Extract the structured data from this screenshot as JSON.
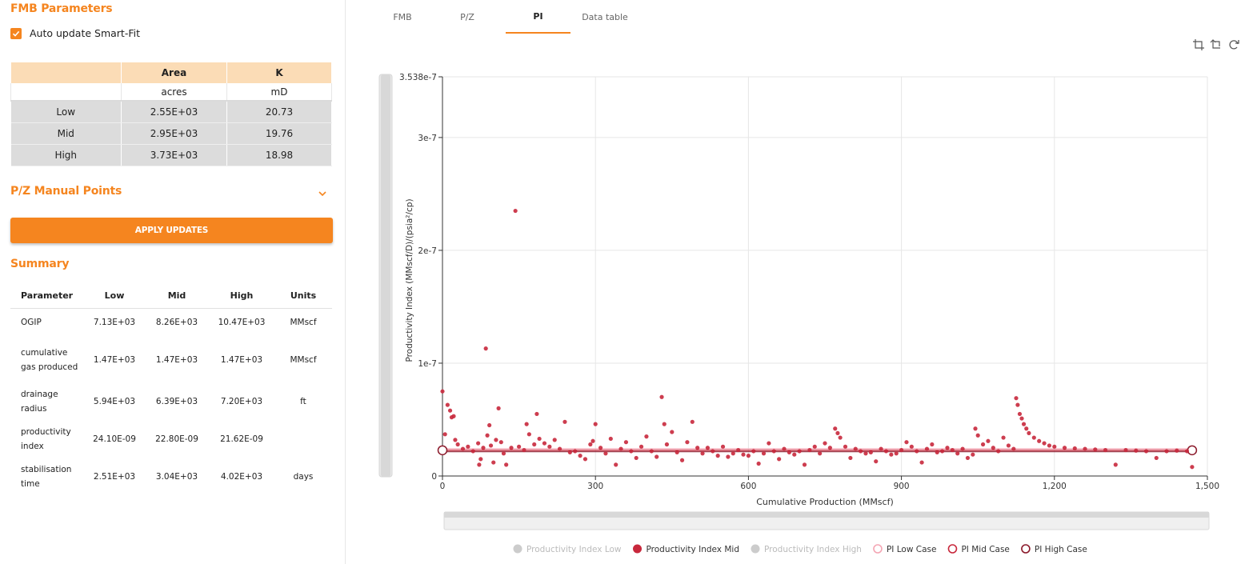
{
  "fmb": {
    "title": "FMB Parameters",
    "auto_update_label": "Auto update Smart-Fit",
    "table": {
      "headers": [
        "",
        "Area",
        "K"
      ],
      "units": [
        "",
        "acres",
        "mD"
      ],
      "rows": [
        {
          "case": "Low",
          "area": "2.55E+03",
          "k": "20.73"
        },
        {
          "case": "Mid",
          "area": "2.95E+03",
          "k": "19.76"
        },
        {
          "case": "High",
          "area": "3.73E+03",
          "k": "18.98"
        }
      ]
    }
  },
  "pz_manual": {
    "title": "P/Z Manual Points"
  },
  "apply_button": {
    "label": "APPLY UPDATES"
  },
  "summary": {
    "title": "Summary",
    "headers": [
      "Parameter",
      "Low",
      "Mid",
      "High",
      "Units"
    ],
    "rows": [
      {
        "param": "OGIP",
        "low": "7.13E+03",
        "mid": "8.26E+03",
        "high": "10.47E+03",
        "units": "MMscf"
      },
      {
        "param": "cumulative gas produced",
        "low": "1.47E+03",
        "mid": "1.47E+03",
        "high": "1.47E+03",
        "units": "MMscf"
      },
      {
        "param": "drainage radius",
        "low": "5.94E+03",
        "mid": "6.39E+03",
        "high": "7.20E+03",
        "units": "ft"
      },
      {
        "param": "productivity index",
        "low": "24.10E-09",
        "mid": "22.80E-09",
        "high": "21.62E-09",
        "units": ""
      },
      {
        "param": "stabilisation time",
        "low": "2.51E+03",
        "mid": "3.04E+03",
        "high": "4.02E+03",
        "units": "days"
      }
    ]
  },
  "tabs": [
    {
      "label": "FMB",
      "active": false
    },
    {
      "label": "P/Z",
      "active": false
    },
    {
      "label": "PI",
      "active": true
    },
    {
      "label": "Data table",
      "active": false
    }
  ],
  "colors": {
    "accent": "#f5851f",
    "header_fill": "#fbdcb6",
    "mid_series": "#c8283c",
    "high_case": "#8b1a2b",
    "low_case": "#f4a6b4",
    "inactive_legend": "#cccccc"
  },
  "chart_data": {
    "type": "scatter",
    "xlabel": "Cumulative Production (MMscf)",
    "ylabel": "Productivity Index (MMscf/D)/(psia²/cp)",
    "xlim": [
      0,
      1500
    ],
    "ylim": [
      0,
      3.538e-07
    ],
    "x_ticks": [
      "0",
      "300",
      "600",
      "900",
      "1,200",
      "1,500"
    ],
    "y_ticks": [
      "0",
      "1e-7",
      "2e-7",
      "3e-7",
      "3.538e-7"
    ],
    "y_tick_values": [
      0,
      1e-07,
      2e-07,
      3e-07,
      3.538e-07
    ],
    "x_tick_values": [
      0,
      300,
      600,
      900,
      1200,
      1500
    ],
    "grid": true,
    "legend": [
      {
        "name": "Productivity Index Low",
        "marker": "dot",
        "active": false
      },
      {
        "name": "Productivity Index Mid",
        "marker": "dot",
        "active": true
      },
      {
        "name": "Productivity Index High",
        "marker": "dot",
        "active": false
      },
      {
        "name": "PI Low Case",
        "marker": "ring",
        "active": true
      },
      {
        "name": "PI Mid Case",
        "marker": "ring",
        "active": true
      },
      {
        "name": "PI High Case",
        "marker": "ring",
        "active": true
      }
    ],
    "case_lines": [
      {
        "name": "PI Low Case",
        "value": 2.41e-08,
        "x_range": [
          0,
          1470
        ]
      },
      {
        "name": "PI Mid Case",
        "value": 2.28e-08,
        "x_range": [
          0,
          1470
        ]
      },
      {
        "name": "PI High Case",
        "value": 2.162e-08,
        "x_range": [
          0,
          1470
        ]
      }
    ],
    "series_mid_points": [
      [
        0,
        7.5e-08
      ],
      [
        5,
        3.7e-08
      ],
      [
        10,
        6.3e-08
      ],
      [
        15,
        5.8e-08
      ],
      [
        18,
        5.2e-08
      ],
      [
        22,
        5.3e-08
      ],
      [
        25,
        3.2e-08
      ],
      [
        30,
        2.8e-08
      ],
      [
        40,
        2.4e-08
      ],
      [
        50,
        2.6e-08
      ],
      [
        60,
        2.2e-08
      ],
      [
        70,
        2.9e-08
      ],
      [
        72,
        1e-08
      ],
      [
        75,
        1.5e-08
      ],
      [
        80,
        2.5e-08
      ],
      [
        85,
        1.13e-07
      ],
      [
        88,
        3.6e-08
      ],
      [
        92,
        4.5e-08
      ],
      [
        95,
        2.7e-08
      ],
      [
        100,
        1.2e-08
      ],
      [
        105,
        3.2e-08
      ],
      [
        110,
        6e-08
      ],
      [
        115,
        3e-08
      ],
      [
        120,
        2e-08
      ],
      [
        125,
        1e-08
      ],
      [
        135,
        2.5e-08
      ],
      [
        143,
        2.35e-07
      ],
      [
        150,
        2.6e-08
      ],
      [
        160,
        2.3e-08
      ],
      [
        165,
        4.6e-08
      ],
      [
        170,
        3.7e-08
      ],
      [
        180,
        2.8e-08
      ],
      [
        185,
        5.5e-08
      ],
      [
        190,
        3.3e-08
      ],
      [
        200,
        2.9e-08
      ],
      [
        210,
        2.6e-08
      ],
      [
        220,
        3.2e-08
      ],
      [
        230,
        2.4e-08
      ],
      [
        240,
        4.8e-08
      ],
      [
        250,
        2.1e-08
      ],
      [
        260,
        2.2e-08
      ],
      [
        270,
        1.8e-08
      ],
      [
        280,
        1.5e-08
      ],
      [
        290,
        2.8e-08
      ],
      [
        295,
        3.1e-08
      ],
      [
        300,
        4.6e-08
      ],
      [
        310,
        2.5e-08
      ],
      [
        320,
        2e-08
      ],
      [
        330,
        3.3e-08
      ],
      [
        340,
        1e-08
      ],
      [
        350,
        2.4e-08
      ],
      [
        360,
        3e-08
      ],
      [
        370,
        2.2e-08
      ],
      [
        380,
        1.6e-08
      ],
      [
        390,
        2.6e-08
      ],
      [
        400,
        3.5e-08
      ],
      [
        410,
        2.2e-08
      ],
      [
        420,
        1.7e-08
      ],
      [
        430,
        7e-08
      ],
      [
        435,
        4.6e-08
      ],
      [
        440,
        2.8e-08
      ],
      [
        450,
        3.9e-08
      ],
      [
        460,
        2.1e-08
      ],
      [
        470,
        1.4e-08
      ],
      [
        480,
        3e-08
      ],
      [
        490,
        4.8e-08
      ],
      [
        500,
        2.5e-08
      ],
      [
        510,
        2e-08
      ],
      [
        520,
        2.5e-08
      ],
      [
        530,
        2.2e-08
      ],
      [
        540,
        1.8e-08
      ],
      [
        550,
        2.6e-08
      ],
      [
        560,
        1.7e-08
      ],
      [
        570,
        2e-08
      ],
      [
        580,
        2.3e-08
      ],
      [
        590,
        1.9e-08
      ],
      [
        600,
        1.8e-08
      ],
      [
        610,
        2.2e-08
      ],
      [
        620,
        1.1e-08
      ],
      [
        630,
        2e-08
      ],
      [
        640,
        2.9e-08
      ],
      [
        650,
        2.2e-08
      ],
      [
        660,
        1.5e-08
      ],
      [
        670,
        2.4e-08
      ],
      [
        680,
        2.1e-08
      ],
      [
        690,
        1.9e-08
      ],
      [
        700,
        2.2e-08
      ],
      [
        710,
        1e-08
      ],
      [
        720,
        2.3e-08
      ],
      [
        730,
        2.6e-08
      ],
      [
        740,
        2e-08
      ],
      [
        750,
        2.9e-08
      ],
      [
        760,
        2.5e-08
      ],
      [
        770,
        4.2e-08
      ],
      [
        775,
        3.8e-08
      ],
      [
        780,
        3.4e-08
      ],
      [
        790,
        2.6e-08
      ],
      [
        800,
        1.6e-08
      ],
      [
        810,
        2.4e-08
      ],
      [
        820,
        2.2e-08
      ],
      [
        830,
        2e-08
      ],
      [
        840,
        2.1e-08
      ],
      [
        850,
        1.3e-08
      ],
      [
        860,
        2.4e-08
      ],
      [
        870,
        2.2e-08
      ],
      [
        880,
        1.9e-08
      ],
      [
        890,
        2e-08
      ],
      [
        900,
        2.3e-08
      ],
      [
        910,
        3e-08
      ],
      [
        920,
        2.6e-08
      ],
      [
        930,
        2.2e-08
      ],
      [
        940,
        1.2e-08
      ],
      [
        950,
        2.4e-08
      ],
      [
        960,
        2.8e-08
      ],
      [
        970,
        2.1e-08
      ],
      [
        980,
        2.2e-08
      ],
      [
        990,
        2.5e-08
      ],
      [
        1000,
        2.3e-08
      ],
      [
        1010,
        2e-08
      ],
      [
        1020,
        2.4e-08
      ],
      [
        1030,
        1.6e-08
      ],
      [
        1040,
        1.9e-08
      ],
      [
        1045,
        4.2e-08
      ],
      [
        1050,
        3.6e-08
      ],
      [
        1060,
        2.8e-08
      ],
      [
        1070,
        3.1e-08
      ],
      [
        1080,
        2.5e-08
      ],
      [
        1090,
        2.2e-08
      ],
      [
        1100,
        3.4e-08
      ],
      [
        1110,
        2.7e-08
      ],
      [
        1120,
        2.4e-08
      ],
      [
        1125,
        6.9e-08
      ],
      [
        1128,
        6.3e-08
      ],
      [
        1132,
        5.5e-08
      ],
      [
        1136,
        5.1e-08
      ],
      [
        1140,
        4.6e-08
      ],
      [
        1145,
        4.2e-08
      ],
      [
        1150,
        3.8e-08
      ],
      [
        1160,
        3.4e-08
      ],
      [
        1170,
        3.1e-08
      ],
      [
        1180,
        2.9e-08
      ],
      [
        1190,
        2.7e-08
      ],
      [
        1200,
        2.6e-08
      ],
      [
        1220,
        2.5e-08
      ],
      [
        1240,
        2.45e-08
      ],
      [
        1260,
        2.4e-08
      ],
      [
        1280,
        2.35e-08
      ],
      [
        1300,
        2.3e-08
      ],
      [
        1320,
        1e-08
      ],
      [
        1340,
        2.3e-08
      ],
      [
        1360,
        2.25e-08
      ],
      [
        1380,
        2.2e-08
      ],
      [
        1400,
        1.6e-08
      ],
      [
        1420,
        2.2e-08
      ],
      [
        1440,
        2.25e-08
      ],
      [
        1460,
        2.2e-08
      ],
      [
        1470,
        8e-09
      ]
    ]
  }
}
